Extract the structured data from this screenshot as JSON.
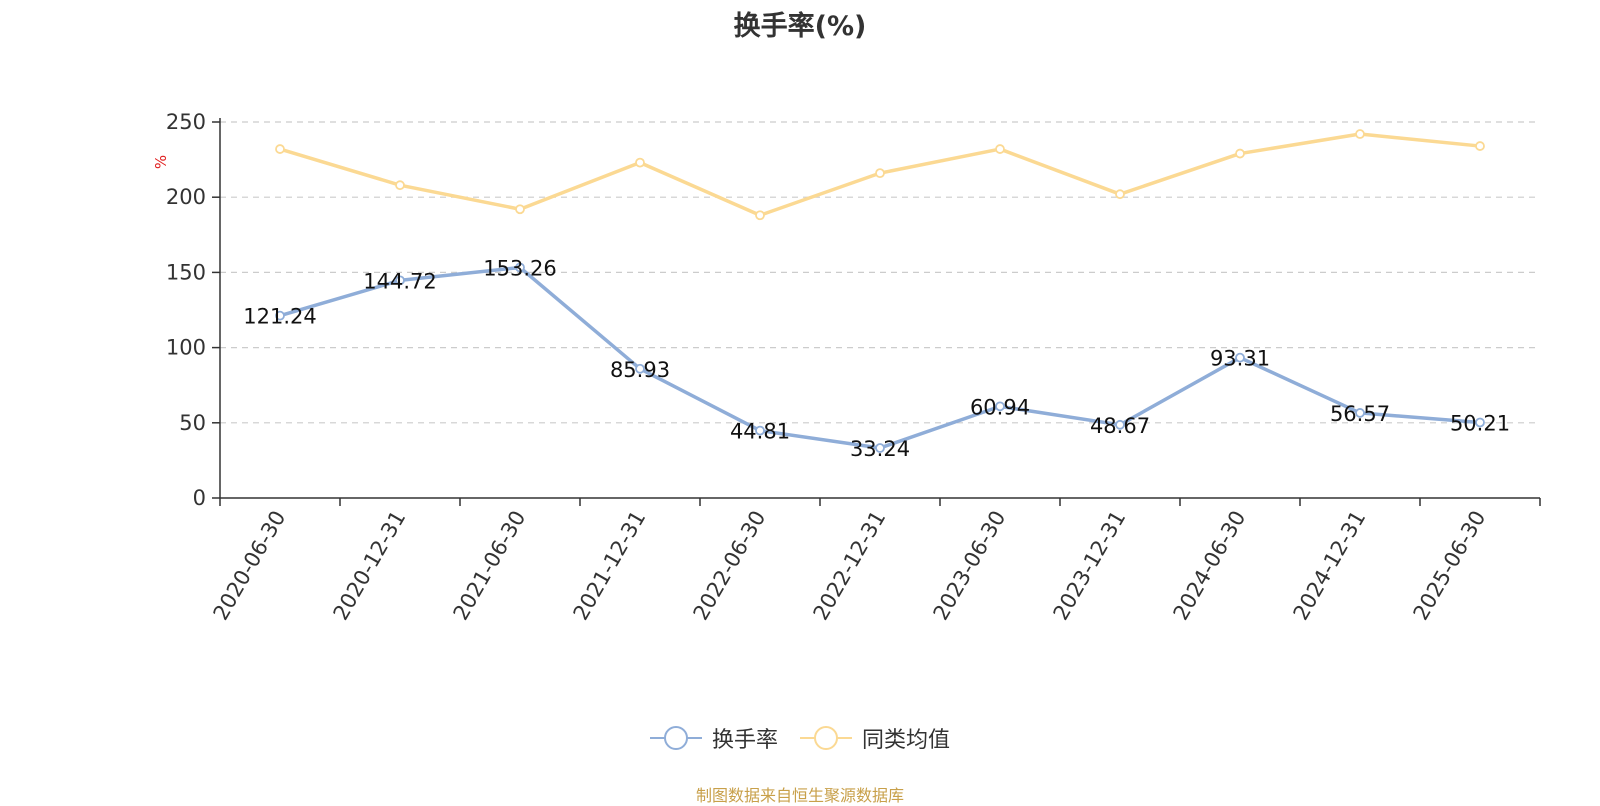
{
  "chart_data": {
    "type": "line",
    "title": "换手率(%)",
    "ylabel": "%",
    "ylim": [
      0,
      250
    ],
    "yticks": [
      0,
      50,
      100,
      150,
      200,
      250
    ],
    "grid": true,
    "legend_position": "bottom",
    "categories": [
      "2020-06-30",
      "2020-12-31",
      "2021-06-30",
      "2021-12-31",
      "2022-06-30",
      "2022-12-31",
      "2023-06-30",
      "2023-12-31",
      "2024-06-30",
      "2024-12-31",
      "2025-06-30"
    ],
    "series": [
      {
        "name": "换手率",
        "color": "#8fadd8",
        "show_labels": true,
        "values": [
          121.24,
          144.72,
          153.26,
          85.93,
          44.81,
          33.24,
          60.94,
          48.67,
          93.31,
          56.57,
          50.21
        ]
      },
      {
        "name": "同类均值",
        "color": "#fbd993",
        "show_labels": false,
        "values": [
          232,
          208,
          192,
          223,
          188,
          216,
          232,
          202,
          229,
          242,
          234
        ]
      }
    ]
  },
  "source": "制图数据来自恒生聚源数据库"
}
